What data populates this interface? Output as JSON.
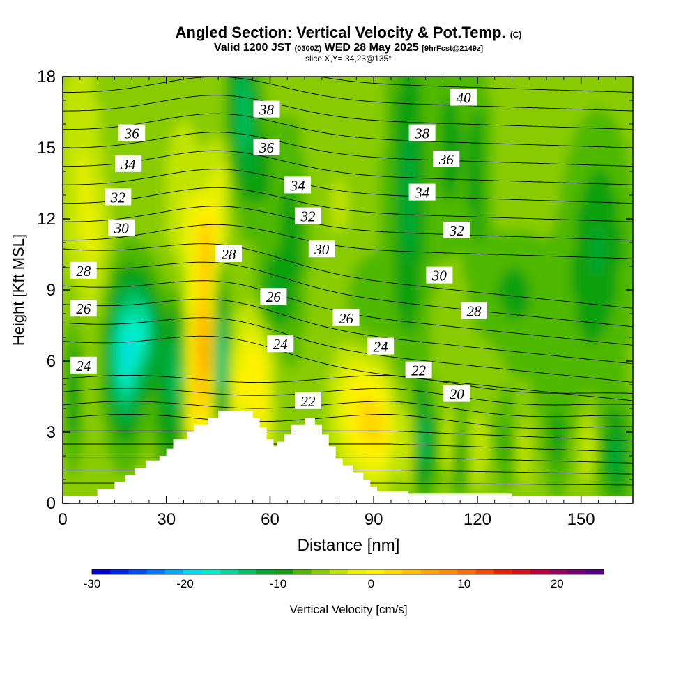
{
  "header": {
    "title_main": "Angled Section: Vertical Velocity & Pot.Temp.",
    "title_units": "(C)",
    "valid_a": "Valid 1200 JST",
    "valid_utc": "(0300Z)",
    "valid_b": "WED 28 May 2025",
    "forecast_tag": "[9hrFcst@2149z]",
    "slice": "slice X,Y= 34,23@135°"
  },
  "chart_data": {
    "type": "heatmap",
    "xlabel": "Distance [nm]",
    "ylabel": "Height [Kft MSL]",
    "xlim": [
      0,
      165
    ],
    "ylim": [
      0,
      18
    ],
    "x_ticks": [
      0,
      30,
      60,
      90,
      120,
      150
    ],
    "y_ticks": [
      0,
      3,
      6,
      9,
      12,
      15,
      18
    ],
    "colorbar": {
      "label": "Vertical Velocity [cm/s]",
      "range": [
        -30,
        25
      ],
      "step": 2.5,
      "ticks": [
        -30,
        -20,
        -10,
        0,
        10,
        20
      ],
      "colors": [
        "#0000dc",
        "#0028ec",
        "#0050f8",
        "#0078fc",
        "#00a8f8",
        "#00d8f0",
        "#00ecc8",
        "#00d898",
        "#00c060",
        "#00a830",
        "#10a010",
        "#50b800",
        "#88cc00",
        "#c0e400",
        "#e8f000",
        "#fff200",
        "#ffd800",
        "#ffbe00",
        "#ffa400",
        "#ff8a00",
        "#ff6e00",
        "#f84800",
        "#ec2000",
        "#d8101c",
        "#c00040",
        "#9c0060",
        "#780078",
        "#5a0088"
      ]
    },
    "terrain_top_kft": [
      [
        0,
        0.3
      ],
      [
        10,
        0.6
      ],
      [
        15,
        0.9
      ],
      [
        18,
        1.2
      ],
      [
        21,
        1.5
      ],
      [
        24,
        1.8
      ],
      [
        28,
        2
      ],
      [
        30,
        2.3
      ],
      [
        32,
        2.7
      ],
      [
        36,
        3.0
      ],
      [
        38,
        3.3
      ],
      [
        42,
        3.6
      ],
      [
        45,
        3.9
      ],
      [
        53,
        3.9
      ],
      [
        55,
        3.6
      ],
      [
        57,
        3.2
      ],
      [
        59,
        2.7
      ],
      [
        61,
        2.4
      ],
      [
        62,
        2.6
      ],
      [
        64,
        2.9
      ],
      [
        66,
        3.3
      ],
      [
        70,
        3.6
      ],
      [
        73,
        3.3
      ],
      [
        75,
        2.9
      ],
      [
        77,
        2.4
      ],
      [
        79,
        1.9
      ],
      [
        81,
        1.6
      ],
      [
        84,
        1.3
      ],
      [
        87,
        1.0
      ],
      [
        89,
        0.7
      ],
      [
        91,
        0.5
      ],
      [
        100,
        0.4
      ],
      [
        130,
        0.3
      ],
      [
        165,
        0.3
      ]
    ],
    "theta_contour_labels": [
      {
        "text": "40",
        "x": 116,
        "y": 17.1
      },
      {
        "text": "38",
        "x": 59,
        "y": 16.6
      },
      {
        "text": "38",
        "x": 104,
        "y": 15.6
      },
      {
        "text": "36",
        "x": 20,
        "y": 15.6
      },
      {
        "text": "36",
        "x": 59,
        "y": 15.0
      },
      {
        "text": "36",
        "x": 111,
        "y": 14.5
      },
      {
        "text": "34",
        "x": 19,
        "y": 14.3
      },
      {
        "text": "34",
        "x": 68,
        "y": 13.4
      },
      {
        "text": "34",
        "x": 104,
        "y": 13.1
      },
      {
        "text": "32",
        "x": 16,
        "y": 12.9
      },
      {
        "text": "32",
        "x": 71,
        "y": 12.1
      },
      {
        "text": "32",
        "x": 114,
        "y": 11.5
      },
      {
        "text": "30",
        "x": 17,
        "y": 11.6
      },
      {
        "text": "30",
        "x": 75,
        "y": 10.7
      },
      {
        "text": "30",
        "x": 109,
        "y": 9.6
      },
      {
        "text": "28",
        "x": 6,
        "y": 9.8
      },
      {
        "text": "28",
        "x": 48,
        "y": 10.5
      },
      {
        "text": "28",
        "x": 119,
        "y": 8.1
      },
      {
        "text": "26",
        "x": 6,
        "y": 8.2
      },
      {
        "text": "26",
        "x": 61,
        "y": 8.7
      },
      {
        "text": "26",
        "x": 82,
        "y": 7.8
      },
      {
        "text": "24",
        "x": 6,
        "y": 5.8
      },
      {
        "text": "24",
        "x": 63,
        "y": 6.7
      },
      {
        "text": "24",
        "x": 92,
        "y": 6.6
      },
      {
        "text": "22",
        "x": 71,
        "y": 4.3
      },
      {
        "text": "22",
        "x": 103,
        "y": 5.6
      },
      {
        "text": "20",
        "x": 114,
        "y": 4.6
      }
    ]
  }
}
